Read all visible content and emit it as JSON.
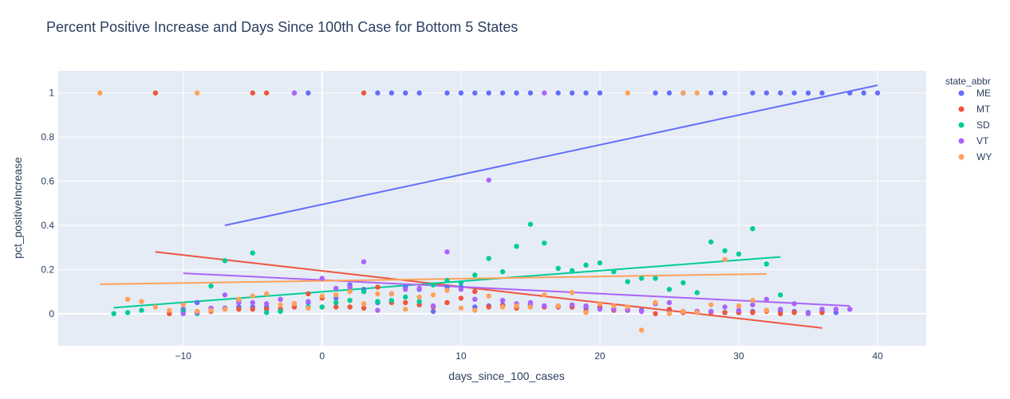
{
  "chart_data": {
    "type": "scatter",
    "title": "Percent Positive Increase and Days Since 100th Case for Bottom 5 States",
    "xlabel": "days_since_100_cases",
    "ylabel": "pct_positiveIncrease",
    "xlim": [
      -19,
      43.5
    ],
    "ylim": [
      -0.145,
      1.1
    ],
    "xticks": [
      -10,
      0,
      10,
      20,
      30,
      40
    ],
    "yticks": [
      0,
      0.2,
      0.4,
      0.6,
      0.8,
      1
    ],
    "xtick_labels": [
      "−10",
      "0",
      "10",
      "20",
      "30",
      "40"
    ],
    "ytick_labels": [
      "0",
      "0.2",
      "0.4",
      "0.6",
      "0.8",
      "1"
    ],
    "grid": true,
    "legend": {
      "title": "state_abbr",
      "position": "right"
    },
    "series": [
      {
        "name": "ME",
        "color": "#636efa",
        "trendline": {
          "x": [
            -7,
            40
          ],
          "y": [
            0.4,
            1.035
          ]
        },
        "points": [
          [
            -2,
            1
          ],
          [
            -1,
            1
          ],
          [
            4,
            1
          ],
          [
            5,
            1
          ],
          [
            6,
            1
          ],
          [
            7,
            1
          ],
          [
            9,
            1
          ],
          [
            10,
            1
          ],
          [
            11,
            1
          ],
          [
            12,
            1
          ],
          [
            13,
            1
          ],
          [
            14,
            1
          ],
          [
            15,
            1
          ],
          [
            17,
            1
          ],
          [
            18,
            1
          ],
          [
            19,
            1
          ],
          [
            20,
            1
          ],
          [
            24,
            1
          ],
          [
            25,
            1
          ],
          [
            26,
            1
          ],
          [
            28,
            1
          ],
          [
            29,
            1
          ],
          [
            31,
            1
          ],
          [
            32,
            1
          ],
          [
            33,
            1
          ],
          [
            34,
            1
          ],
          [
            35,
            1
          ],
          [
            36,
            1
          ],
          [
            38,
            1
          ],
          [
            39,
            1
          ],
          [
            40,
            1
          ],
          [
            -10,
            0.02
          ],
          [
            -9,
            0.05
          ],
          [
            -8,
            0.025
          ],
          [
            -7,
            0.025
          ],
          [
            -6,
            0.03
          ],
          [
            -5,
            0.03
          ],
          [
            -4,
            0.03
          ],
          [
            -3,
            0.02
          ],
          [
            -2,
            0.045
          ],
          [
            -1,
            0.05
          ],
          [
            0,
            0.03
          ],
          [
            1,
            0.07
          ],
          [
            2,
            0.13
          ],
          [
            3,
            0.11
          ],
          [
            4,
            0.05
          ],
          [
            5,
            0.09
          ],
          [
            6,
            0.12
          ],
          [
            7,
            0.11
          ],
          [
            8,
            0.01
          ],
          [
            9,
            0.12
          ],
          [
            10,
            0.12
          ],
          [
            11,
            0.03
          ],
          [
            12,
            0.035
          ],
          [
            13,
            0.04
          ],
          [
            14,
            0.03
          ],
          [
            15,
            0.04
          ],
          [
            16,
            0.035
          ],
          [
            17,
            0.03
          ],
          [
            18,
            0.03
          ],
          [
            19,
            0.025
          ],
          [
            20,
            0.03
          ],
          [
            21,
            0.02
          ],
          [
            22,
            0.02
          ],
          [
            23,
            0.015
          ],
          [
            24,
            0.045
          ],
          [
            25,
            0.015
          ],
          [
            26,
            0.01
          ],
          [
            27,
            0.01
          ],
          [
            28,
            0.01
          ],
          [
            29,
            0.005
          ],
          [
            30,
            0.005
          ],
          [
            31,
            0.01
          ],
          [
            32,
            0.015
          ],
          [
            33,
            0.01
          ],
          [
            34,
            0.01
          ],
          [
            35,
            0.005
          ],
          [
            36,
            0.01
          ],
          [
            37,
            0.005
          ],
          [
            38,
            0.02
          ]
        ]
      },
      {
        "name": "MT",
        "color": "#ef553b",
        "trendline": {
          "x": [
            -12,
            36
          ],
          "y": [
            0.28,
            -0.065
          ]
        },
        "points": [
          [
            -12,
            1
          ],
          [
            -5,
            1
          ],
          [
            -4,
            1
          ],
          [
            3,
            1
          ],
          [
            -11,
            0
          ],
          [
            -10,
            0.01
          ],
          [
            -9,
            0.01
          ],
          [
            -8,
            0.01
          ],
          [
            -7,
            0.02
          ],
          [
            -6,
            0.02
          ],
          [
            -5,
            0.02
          ],
          [
            -4,
            0.02
          ],
          [
            -3,
            0.02
          ],
          [
            -2,
            0.03
          ],
          [
            -1,
            0.09
          ],
          [
            0,
            0.07
          ],
          [
            1,
            0.03
          ],
          [
            2,
            0.03
          ],
          [
            3,
            0.025
          ],
          [
            4,
            0.12
          ],
          [
            5,
            0.05
          ],
          [
            6,
            0.05
          ],
          [
            7,
            0.04
          ],
          [
            8,
            0.03
          ],
          [
            9,
            0.05
          ],
          [
            10,
            0.07
          ],
          [
            11,
            0.1
          ],
          [
            12,
            0.03
          ],
          [
            13,
            0.035
          ],
          [
            14,
            0.025
          ],
          [
            15,
            0.03
          ],
          [
            16,
            0.03
          ],
          [
            17,
            0.03
          ],
          [
            18,
            0.03
          ],
          [
            19,
            0.01
          ],
          [
            20,
            0.03
          ],
          [
            21,
            0.015
          ],
          [
            22,
            0.015
          ],
          [
            23,
            0.01
          ],
          [
            24,
            0
          ],
          [
            25,
            0.02
          ],
          [
            26,
            0.005
          ],
          [
            27,
            0.01
          ],
          [
            28,
            0.005
          ],
          [
            29,
            0.005
          ],
          [
            30,
            0.005
          ],
          [
            31,
            0.005
          ],
          [
            32,
            0.01
          ],
          [
            33,
            0
          ],
          [
            34,
            0.005
          ],
          [
            36,
            0.005
          ]
        ]
      },
      {
        "name": "SD",
        "color": "#00cc96",
        "trendline": {
          "x": [
            -15,
            33
          ],
          "y": [
            0.027,
            0.257
          ]
        },
        "points": [
          [
            -15,
            0
          ],
          [
            -14,
            0.005
          ],
          [
            -13,
            0.015
          ],
          [
            -10,
            0.01
          ],
          [
            -9,
            0
          ],
          [
            -8,
            0.125
          ],
          [
            -7,
            0.24
          ],
          [
            -6,
            0.06
          ],
          [
            -5,
            0.275
          ],
          [
            -4,
            0.005
          ],
          [
            -3,
            0.01
          ],
          [
            -1,
            0.03
          ],
          [
            0,
            0.03
          ],
          [
            1,
            0.05
          ],
          [
            2,
            0.06
          ],
          [
            3,
            0.1
          ],
          [
            4,
            0.055
          ],
          [
            5,
            0.06
          ],
          [
            6,
            0.075
          ],
          [
            7,
            0.055
          ],
          [
            8,
            0.13
          ],
          [
            9,
            0.15
          ],
          [
            10,
            0.14
          ],
          [
            11,
            0.175
          ],
          [
            12,
            0.25
          ],
          [
            13,
            0.19
          ],
          [
            14,
            0.305
          ],
          [
            15,
            0.405
          ],
          [
            16,
            0.32
          ],
          [
            17,
            0.205
          ],
          [
            18,
            0.195
          ],
          [
            19,
            0.22
          ],
          [
            20,
            0.23
          ],
          [
            21,
            0.19
          ],
          [
            22,
            0.145
          ],
          [
            23,
            0.16
          ],
          [
            24,
            0.16
          ],
          [
            25,
            0.11
          ],
          [
            26,
            0.14
          ],
          [
            27,
            0.095
          ],
          [
            28,
            0.325
          ],
          [
            29,
            0.285
          ],
          [
            30,
            0.27
          ],
          [
            31,
            0.385
          ],
          [
            32,
            0.225
          ],
          [
            33,
            0.085
          ]
        ]
      },
      {
        "name": "VT",
        "color": "#ab63fa",
        "trendline": {
          "x": [
            -10,
            38
          ],
          "y": [
            0.183,
            0.035
          ]
        },
        "points": [
          [
            -2,
            1
          ],
          [
            16,
            1
          ],
          [
            -10,
            0
          ],
          [
            -9,
            0.005
          ],
          [
            -8,
            0.025
          ],
          [
            -7,
            0.085
          ],
          [
            -6,
            0.05
          ],
          [
            -5,
            0.05
          ],
          [
            -4,
            0.045
          ],
          [
            -3,
            0.065
          ],
          [
            -2,
            0.045
          ],
          [
            -1,
            0.055
          ],
          [
            0,
            0.16
          ],
          [
            1,
            0.115
          ],
          [
            2,
            0.12
          ],
          [
            3,
            0.235
          ],
          [
            4,
            0.015
          ],
          [
            5,
            0.09
          ],
          [
            6,
            0.11
          ],
          [
            7,
            0.115
          ],
          [
            8,
            0.035
          ],
          [
            9,
            0.28
          ],
          [
            10,
            0.11
          ],
          [
            11,
            0.065
          ],
          [
            12,
            0.605
          ],
          [
            13,
            0.06
          ],
          [
            14,
            0.045
          ],
          [
            15,
            0.05
          ],
          [
            16,
            0.035
          ],
          [
            17,
            0.035
          ],
          [
            18,
            0.04
          ],
          [
            19,
            0.035
          ],
          [
            20,
            0.02
          ],
          [
            21,
            0.02
          ],
          [
            22,
            0.015
          ],
          [
            23,
            0.01
          ],
          [
            24,
            0.045
          ],
          [
            25,
            0.05
          ],
          [
            26,
            0.01
          ],
          [
            27,
            0.01
          ],
          [
            28,
            0.01
          ],
          [
            29,
            0.03
          ],
          [
            30,
            0.015
          ],
          [
            31,
            0.04
          ],
          [
            32,
            0.065
          ],
          [
            33,
            0.02
          ],
          [
            34,
            0.045
          ],
          [
            35,
            0
          ],
          [
            36,
            0.02
          ],
          [
            37,
            0.02
          ],
          [
            38,
            0.02
          ]
        ]
      },
      {
        "name": "WY",
        "color": "#ffa15a",
        "trendline": {
          "x": [
            -16,
            32
          ],
          "y": [
            0.133,
            0.18
          ]
        },
        "points": [
          [
            -16,
            1
          ],
          [
            -9,
            1
          ],
          [
            22,
            1
          ],
          [
            26,
            1
          ],
          [
            27,
            1
          ],
          [
            -14,
            0.065
          ],
          [
            -13,
            0.055
          ],
          [
            -12,
            0.03
          ],
          [
            -11,
            0.015
          ],
          [
            -10,
            0.04
          ],
          [
            -9,
            0.01
          ],
          [
            -8,
            0.015
          ],
          [
            -7,
            0.02
          ],
          [
            -6,
            0.065
          ],
          [
            -5,
            0.08
          ],
          [
            -4,
            0.09
          ],
          [
            -3,
            0.04
          ],
          [
            -2,
            0.045
          ],
          [
            -1,
            0.025
          ],
          [
            0,
            0.08
          ],
          [
            1,
            0.085
          ],
          [
            2,
            0.1
          ],
          [
            3,
            0.045
          ],
          [
            4,
            0.09
          ],
          [
            5,
            0.09
          ],
          [
            6,
            0.02
          ],
          [
            7,
            0.075
          ],
          [
            8,
            0.085
          ],
          [
            9,
            0.105
          ],
          [
            10,
            0.025
          ],
          [
            11,
            0.015
          ],
          [
            12,
            0.08
          ],
          [
            13,
            0.03
          ],
          [
            14,
            0.035
          ],
          [
            15,
            0.03
          ],
          [
            16,
            0.085
          ],
          [
            17,
            0.035
          ],
          [
            18,
            0.095
          ],
          [
            19,
            0.005
          ],
          [
            20,
            0.045
          ],
          [
            21,
            0.035
          ],
          [
            22,
            0.03
          ],
          [
            23,
            -0.075
          ],
          [
            24,
            0.05
          ],
          [
            25,
            0
          ],
          [
            26,
            0.01
          ],
          [
            27,
            0.005
          ],
          [
            28,
            0.04
          ],
          [
            29,
            0.245
          ],
          [
            30,
            0.035
          ],
          [
            31,
            0.06
          ],
          [
            32,
            0.015
          ]
        ]
      }
    ]
  }
}
